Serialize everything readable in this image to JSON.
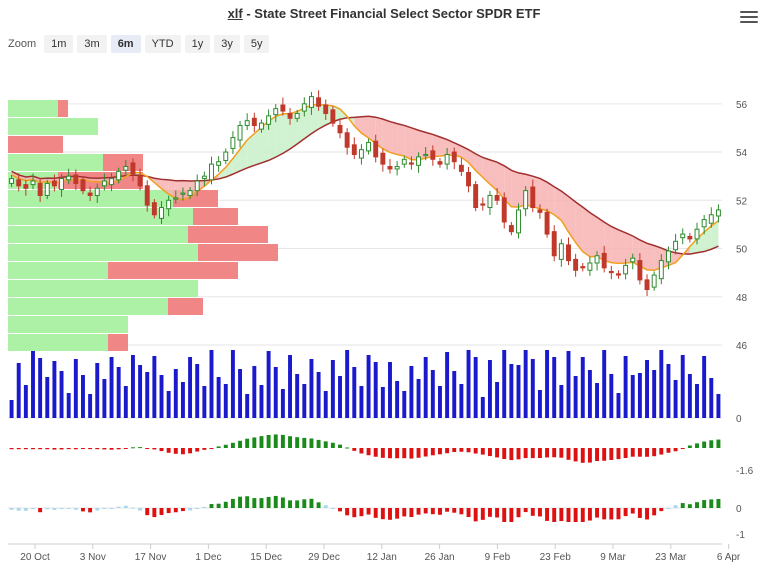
{
  "header": {
    "ticker": "xlf",
    "title_rest": " - State Street Financial Select Sector SPDR ETF"
  },
  "zoom": {
    "label": "Zoom",
    "options": [
      "1m",
      "3m",
      "6m",
      "YTD",
      "1y",
      "3y",
      "5y"
    ],
    "selected": "6m"
  },
  "colors": {
    "up_candle": "#2e8b2e",
    "down_candle": "#c0392b",
    "kumo_bull": "#c8f0c8",
    "kumo_bear": "#f7b2b2",
    "senkou_a": "#f0a020",
    "senkou_b": "#a03030",
    "volume": "#1a1acc",
    "hist_pos": "#1a8a1a",
    "hist_neg": "#dd1111",
    "hist_light": "#a8d8ee",
    "vp_green": "#a8f0a0",
    "vp_red": "#f08080"
  },
  "chart_data": {
    "type": "candlestick",
    "y_axis": {
      "ticks": [
        56,
        54,
        52,
        50,
        48,
        46
      ],
      "min": 46,
      "max": 57.9
    },
    "x_axis": {
      "ticks": [
        "20 Oct",
        "3 Nov",
        "17 Nov",
        "1 Dec",
        "15 Dec",
        "29 Dec",
        "12 Jan",
        "26 Jan",
        "9 Feb",
        "23 Feb",
        "9 Mar",
        "23 Mar",
        "6 Apr"
      ]
    },
    "closes": [
      52.9,
      52.6,
      52.5,
      52.8,
      52.2,
      52.7,
      52.6,
      52.9,
      53.0,
      52.7,
      52.4,
      52.2,
      52.5,
      52.8,
      52.9,
      53.2,
      53.4,
      53.1,
      52.6,
      51.8,
      51.4,
      51.7,
      52.0,
      52.1,
      52.3,
      52.4,
      52.8,
      53.0,
      53.5,
      53.6,
      54.0,
      54.6,
      55.1,
      55.3,
      55.1,
      55.2,
      55.5,
      55.8,
      55.7,
      55.4,
      55.6,
      56.0,
      56.3,
      55.9,
      55.6,
      55.2,
      54.8,
      54.2,
      53.9,
      54.1,
      54.4,
      53.8,
      53.5,
      53.3,
      53.4,
      53.7,
      53.5,
      53.8,
      53.9,
      53.7,
      53.5,
      53.9,
      53.6,
      53.2,
      52.6,
      51.7,
      51.8,
      52.2,
      52.0,
      51.1,
      50.7,
      51.6,
      52.4,
      51.7,
      51.5,
      50.6,
      49.7,
      50.2,
      49.5,
      49.1,
      49.2,
      49.4,
      49.7,
      49.2,
      49.0,
      48.9,
      49.3,
      49.6,
      48.7,
      48.3,
      48.9,
      49.5,
      49.9,
      50.3,
      50.6,
      50.4,
      50.8,
      51.2,
      51.4,
      51.6
    ],
    "volume": {
      "ticks": [
        0
      ]
    },
    "oscillator_1": {
      "ticks": [
        -1.6
      ]
    },
    "oscillator_2": {
      "ticks": [
        0,
        -1
      ]
    }
  }
}
